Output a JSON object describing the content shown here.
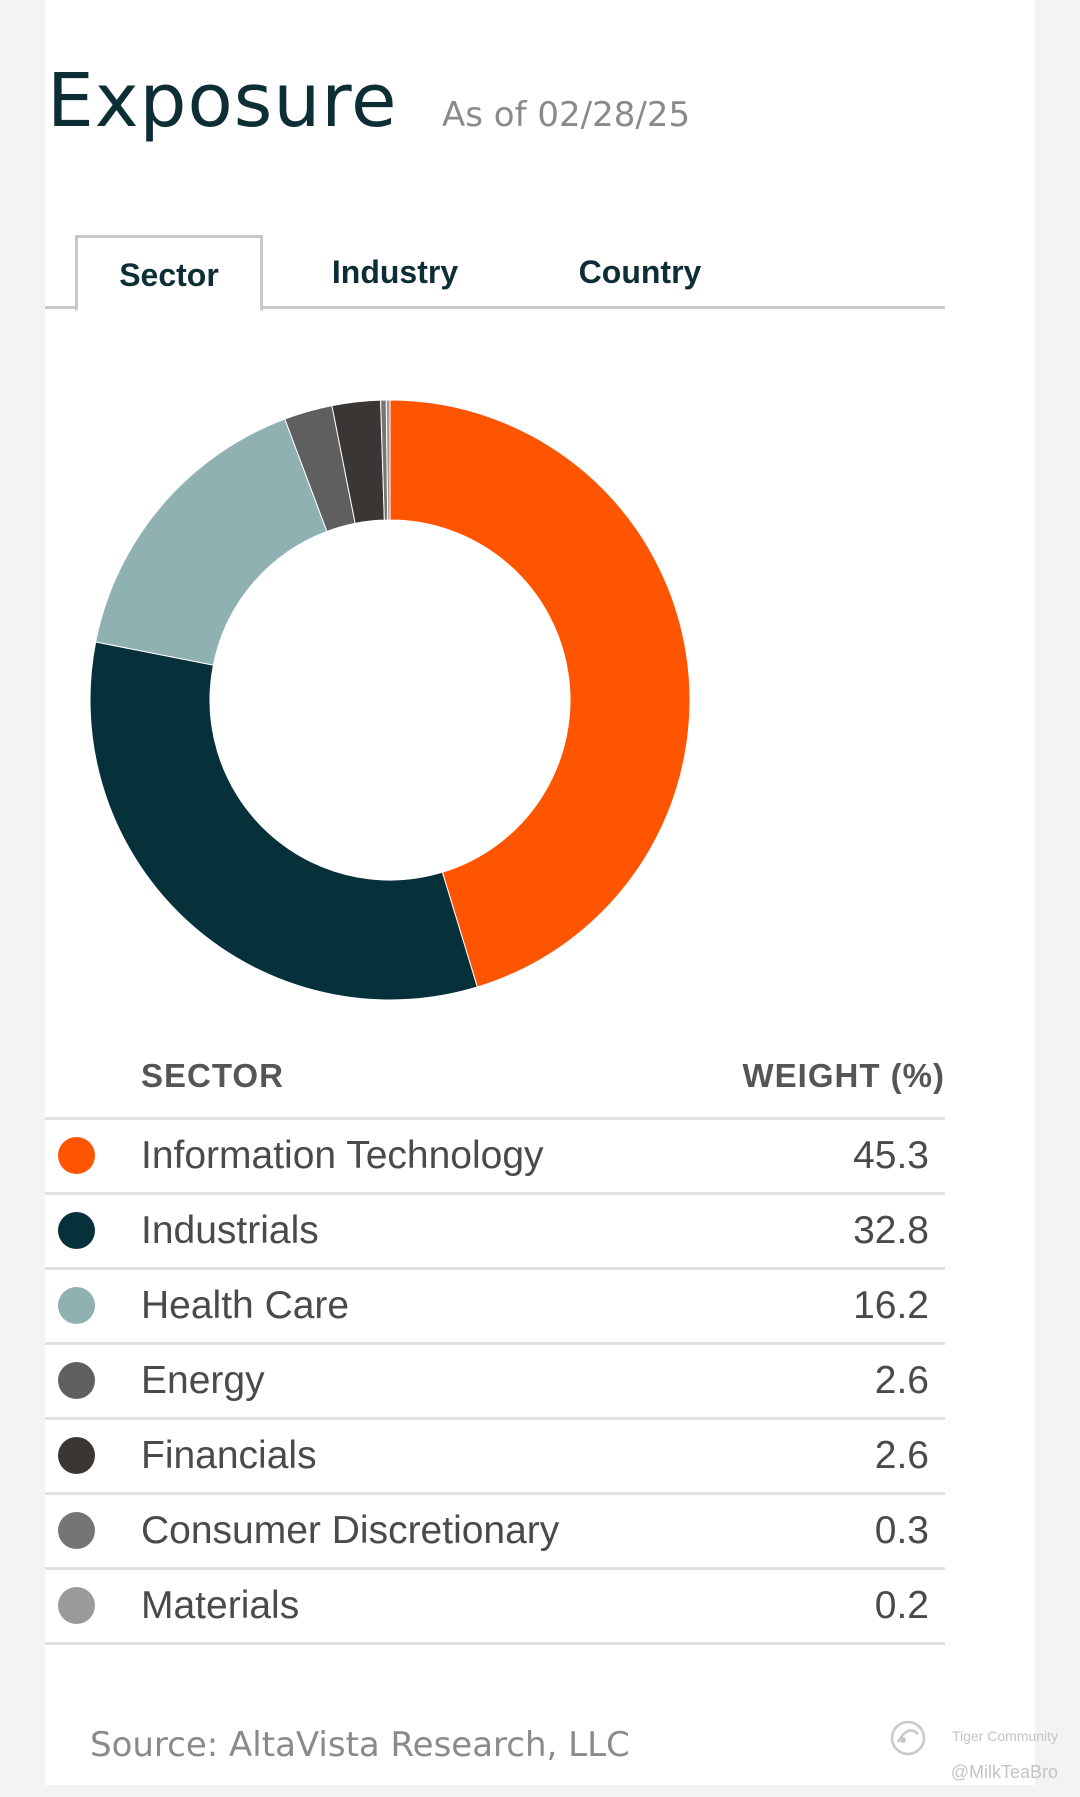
{
  "header": {
    "title": "Exposure",
    "as_of": "As of 02/28/25"
  },
  "tabs": [
    {
      "label": "Sector",
      "active": true
    },
    {
      "label": "Industry",
      "active": false
    },
    {
      "label": "Country",
      "active": false
    }
  ],
  "table": {
    "col_sector": "SECTOR",
    "col_weight": "WEIGHT (%)"
  },
  "chart_data": {
    "type": "pie",
    "donut": true,
    "start_angle_deg": 0,
    "direction": "clockwise",
    "title": "",
    "legend_placement": "table below chart",
    "slices": [
      {
        "label": "Information Technology",
        "value": 45.3,
        "display": "45.3",
        "color": "#ff5500"
      },
      {
        "label": "Industrials",
        "value": 32.8,
        "display": "32.8",
        "color": "#06303a"
      },
      {
        "label": "Health Care",
        "value": 16.2,
        "display": "16.2",
        "color": "#8fb1b1"
      },
      {
        "label": "Energy",
        "value": 2.6,
        "display": "2.6",
        "color": "#5f5f5f"
      },
      {
        "label": "Financials",
        "value": 2.6,
        "display": "2.6",
        "color": "#3a3633"
      },
      {
        "label": "Consumer Discretionary",
        "value": 0.3,
        "display": "0.3",
        "color": "#757575"
      },
      {
        "label": "Materials",
        "value": 0.2,
        "display": "0.2",
        "color": "#9a9a9a"
      }
    ]
  },
  "footer": {
    "source": "Source: AltaVista Research, LLC"
  },
  "watermark": {
    "brand": "Tiger Community",
    "handle": "@MilkTeaBro"
  }
}
